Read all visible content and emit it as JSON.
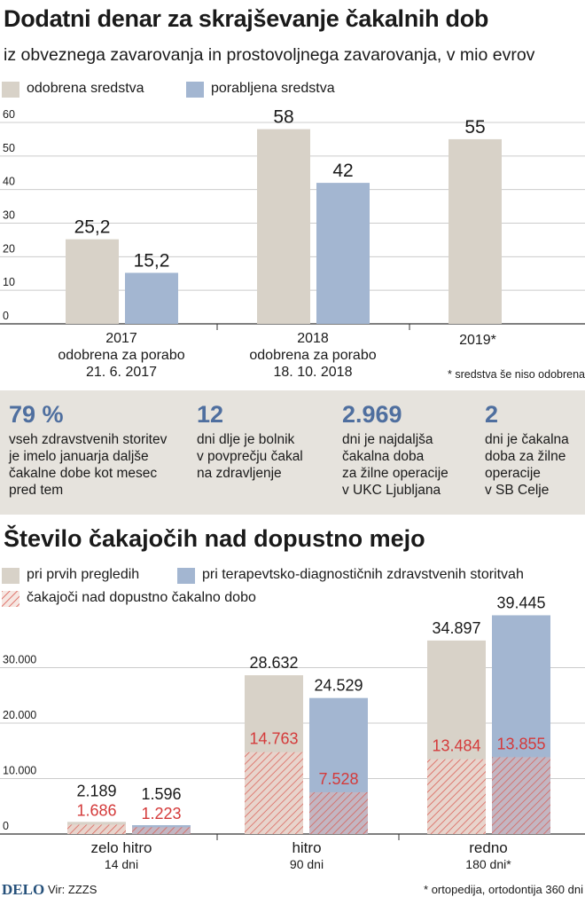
{
  "title": "Dodatni denar za skrajševanje čakalnih dob",
  "subtitle": "iz obveznega zavarovanja in prostovoljnega zavarovanja, v mio evrov",
  "colors": {
    "beige": "#d8d2c8",
    "blue": "#a3b6d1",
    "red": "#d43a3a",
    "stat_blue": "#4f6f9f",
    "band": "#e6e3dd"
  },
  "chart1": {
    "legend": {
      "approved": "odobrena sredstva",
      "used": "porabljena sredstva"
    },
    "categories": [
      {
        "year": "2017",
        "line2": "odobrena za porabo",
        "line3": "21. 6. 2017"
      },
      {
        "year": "2018",
        "line2": "odobrena za porabo",
        "line3": "18. 10. 2018"
      },
      {
        "year": "2019*",
        "line2": "",
        "line3": ""
      }
    ],
    "note": "* sredstva še niso odobrena"
  },
  "stats": [
    {
      "value": "79 %",
      "text": "vseh zdravstvenih storitev\nje imelo januarja daljše\nčakalne dobe kot mesec\npred tem"
    },
    {
      "value": "12",
      "text": "dni dlje je bolnik\nv povprečju čakal\nna zdravljenje"
    },
    {
      "value": "2.969",
      "text": "dni je najdaljša\nčakalna doba\nza žilne operacije\nv UKC Ljubljana"
    },
    {
      "value": "2",
      "text": "dni je čakalna\ndoba za žilne\noperacije\nv SB Celje"
    }
  ],
  "chart2_title": "Število čakajočih nad dopustno mejo",
  "chart2": {
    "legend": {
      "first": "pri prvih pregledih",
      "therapy": "pri terapevtsko-diagnostičnih zdravstvenih storitvah",
      "over": "čakajoči nad dopustno čakalno dobo"
    },
    "categories": [
      {
        "name": "zelo hitro",
        "days": "14 dni"
      },
      {
        "name": "hitro",
        "days": "90 dni"
      },
      {
        "name": "redno",
        "days": "180 dni*"
      }
    ]
  },
  "chart_data": [
    {
      "type": "bar",
      "title": "Dodatni denar za skrajševanje čakalnih dob",
      "ylabel": "v mio evrov",
      "categories": [
        "2017",
        "2018",
        "2019*"
      ],
      "series": [
        {
          "name": "odobrena sredstva",
          "values": [
            25.2,
            58,
            55
          ],
          "labels": [
            "25,2",
            "58",
            "55"
          ]
        },
        {
          "name": "porabljena sredstva",
          "values": [
            15.2,
            42,
            null
          ],
          "labels": [
            "15,2",
            "42",
            ""
          ]
        }
      ],
      "ylim": [
        0,
        60
      ],
      "yticks": [
        0,
        10,
        20,
        30,
        40,
        50,
        60
      ],
      "ytick_labels": [
        "0",
        "10",
        "20",
        "30",
        "40",
        "50",
        "60"
      ]
    },
    {
      "type": "bar",
      "title": "Število čakajočih nad dopustno mejo",
      "categories": [
        "zelo hitro",
        "hitro",
        "redno"
      ],
      "series": [
        {
          "name": "pri prvih pregledih",
          "values": [
            2189,
            28632,
            34897
          ],
          "labels": [
            "2.189",
            "28.632",
            "34.897"
          ],
          "over_values": [
            1686,
            14763,
            13484
          ],
          "over_labels": [
            "1.686",
            "14.763",
            "13.484"
          ]
        },
        {
          "name": "pri terapevtsko-diagnostičnih zdravstvenih storitvah",
          "values": [
            1596,
            24529,
            39445
          ],
          "labels": [
            "1.596",
            "24.529",
            "39.445"
          ],
          "over_values": [
            1223,
            7528,
            13855
          ],
          "over_labels": [
            "1.223",
            "7.528",
            "13.855"
          ]
        }
      ],
      "ylim": [
        0,
        40000
      ],
      "yticks": [
        0,
        10000,
        20000,
        30000
      ],
      "ytick_labels": [
        "0",
        "10.000",
        "20.000",
        "30.000"
      ]
    }
  ],
  "footer": {
    "logo": "DELO",
    "source": "Vir: ZZZS",
    "note": "* ortopedija, ortodontija 360 dni"
  }
}
